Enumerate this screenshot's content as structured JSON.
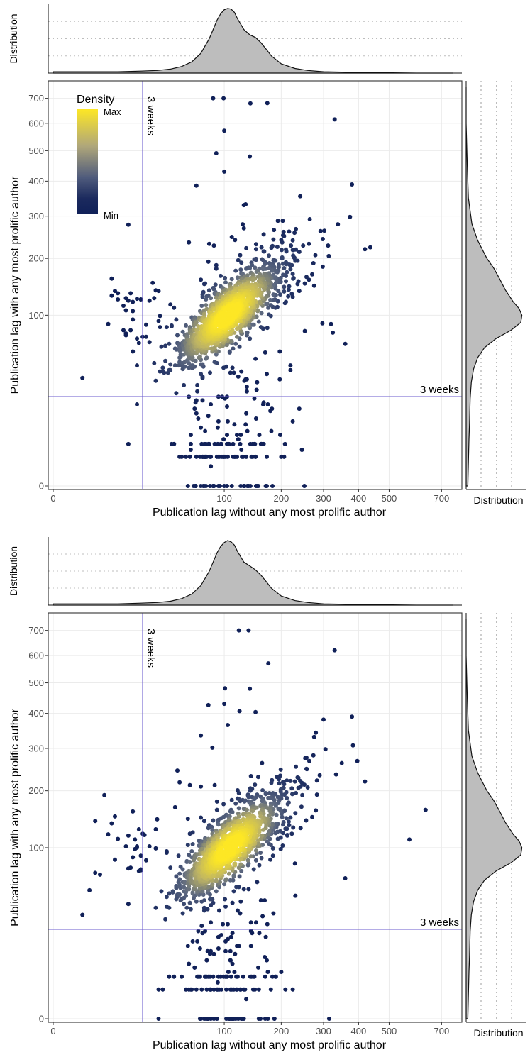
{
  "chart_data": [
    {
      "type": "scatter",
      "density_colored": true,
      "xlabel": "Publication lag without any most prolific author",
      "ylabel": "Publication lag with any most prolific author",
      "x_scale": "pseudo-log",
      "y_scale": "pseudo-log",
      "x_ticks": [
        0,
        100,
        200,
        300,
        400,
        500,
        700
      ],
      "y_ticks": [
        0,
        100,
        200,
        300,
        400,
        500,
        600,
        700
      ],
      "xlim": [
        0,
        750
      ],
      "ylim": [
        0,
        750
      ],
      "grid": true,
      "legend": {
        "title": "Density",
        "max_label": "Max",
        "min_label": "Min",
        "position": "top-left",
        "colors": [
          "#fde725",
          "#b0a77a",
          "#4f5b7c",
          "#1b2a5e",
          "#102058"
        ]
      },
      "reference_lines": [
        {
          "axis": "x",
          "value": 21,
          "label": "3 weeks",
          "color": "#6a5acd"
        },
        {
          "axis": "y",
          "value": 21,
          "label": "3 weeks",
          "color": "#6a5acd"
        }
      ],
      "marginal_top_label": "Distribution",
      "marginal_right_label": "Distribution",
      "marginal_top": {
        "x": [
          0,
          10,
          20,
          30,
          40,
          50,
          60,
          70,
          80,
          85,
          90,
          95,
          100,
          105,
          110,
          115,
          120,
          130,
          140,
          150,
          160,
          170,
          180,
          200,
          230,
          260,
          300,
          400,
          600,
          750
        ],
        "density": [
          0.02,
          0.02,
          0.03,
          0.04,
          0.06,
          0.1,
          0.17,
          0.3,
          0.52,
          0.66,
          0.8,
          0.9,
          0.96,
          0.98,
          0.97,
          0.92,
          0.82,
          0.66,
          0.58,
          0.54,
          0.46,
          0.36,
          0.26,
          0.14,
          0.07,
          0.04,
          0.02,
          0.01,
          0.0,
          0.0
        ]
      },
      "marginal_right": {
        "y": [
          0,
          5,
          10,
          20,
          30,
          40,
          50,
          60,
          70,
          80,
          90,
          100,
          110,
          120,
          140,
          160,
          180,
          200,
          240,
          280,
          350,
          450,
          600,
          750
        ],
        "density": [
          0.03,
          0.05,
          0.06,
          0.07,
          0.09,
          0.13,
          0.2,
          0.32,
          0.52,
          0.78,
          0.95,
          0.97,
          0.92,
          0.82,
          0.68,
          0.58,
          0.48,
          0.36,
          0.2,
          0.1,
          0.04,
          0.02,
          0.0,
          0.0
        ]
      },
      "points_generated": {
        "count": 1700,
        "center_x": 105,
        "center_y": 100,
        "notable": [
          [
            172,
            680
          ],
          [
            330,
            615
          ],
          [
            140,
            480
          ],
          [
            100,
            430
          ],
          [
            380,
            390
          ],
          [
            13,
            107
          ],
          [
            16,
            120
          ],
          [
            2,
            33
          ],
          [
            420,
            220
          ],
          [
            360,
            64
          ]
        ]
      }
    },
    {
      "type": "scatter",
      "density_colored": true,
      "xlabel": "Publication lag without any most prolific author",
      "ylabel": "Publication lag with any most prolific author",
      "x_scale": "pseudo-log",
      "y_scale": "pseudo-log",
      "x_ticks": [
        0,
        100,
        200,
        300,
        400,
        500,
        700
      ],
      "y_ticks": [
        0,
        100,
        200,
        300,
        400,
        500,
        600,
        700
      ],
      "xlim": [
        0,
        750
      ],
      "ylim": [
        0,
        750
      ],
      "grid": true,
      "legend": null,
      "reference_lines": [
        {
          "axis": "x",
          "value": 21,
          "label": "3 weeks",
          "color": "#6a5acd"
        },
        {
          "axis": "y",
          "value": 21,
          "label": "3 weeks",
          "color": "#6a5acd"
        }
      ],
      "marginal_top_label": "Distribution",
      "marginal_right_label": "Distribution",
      "marginal_top": {
        "x": [
          0,
          10,
          20,
          30,
          40,
          50,
          60,
          70,
          80,
          85,
          90,
          95,
          100,
          105,
          110,
          115,
          120,
          130,
          140,
          150,
          160,
          170,
          180,
          200,
          230,
          260,
          300,
          400,
          600,
          750
        ],
        "density": [
          0.02,
          0.02,
          0.03,
          0.04,
          0.06,
          0.1,
          0.17,
          0.3,
          0.52,
          0.66,
          0.8,
          0.9,
          0.96,
          0.99,
          0.97,
          0.92,
          0.82,
          0.66,
          0.6,
          0.54,
          0.46,
          0.36,
          0.26,
          0.14,
          0.07,
          0.04,
          0.02,
          0.01,
          0.0,
          0.0
        ]
      },
      "marginal_right": {
        "y": [
          0,
          5,
          10,
          20,
          30,
          40,
          50,
          60,
          70,
          80,
          90,
          100,
          110,
          120,
          140,
          160,
          180,
          200,
          240,
          280,
          350,
          450,
          600,
          750
        ],
        "density": [
          0.03,
          0.05,
          0.06,
          0.07,
          0.09,
          0.13,
          0.2,
          0.32,
          0.52,
          0.78,
          0.95,
          0.97,
          0.92,
          0.82,
          0.68,
          0.58,
          0.48,
          0.36,
          0.2,
          0.1,
          0.04,
          0.02,
          0.0,
          0.0
        ]
      },
      "points_generated": {
        "count": 1500,
        "center_x": 108,
        "center_y": 100,
        "notable": [
          [
            330,
            620
          ],
          [
            140,
            480
          ],
          [
            100,
            430
          ],
          [
            380,
            390
          ],
          [
            420,
            220
          ],
          [
            360,
            62
          ],
          [
            18,
            100
          ],
          [
            2,
            30
          ],
          [
            315,
            0
          ],
          [
            105,
            365
          ]
        ]
      }
    }
  ]
}
